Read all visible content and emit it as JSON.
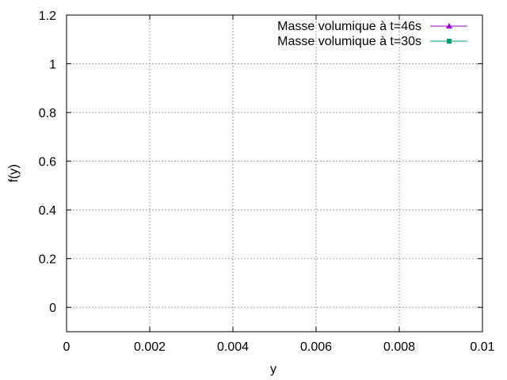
{
  "chart_data": {
    "type": "line",
    "xlabel": "y",
    "ylabel": "f(y)",
    "xlim": [
      0,
      0.01
    ],
    "ylim": [
      -0.1,
      1.2
    ],
    "xticks": [
      {
        "value": 0,
        "label": "0"
      },
      {
        "value": 0.002,
        "label": "0.002"
      },
      {
        "value": 0.004,
        "label": "0.004"
      },
      {
        "value": 0.006,
        "label": "0.006"
      },
      {
        "value": 0.008,
        "label": "0.008"
      },
      {
        "value": 0.01,
        "label": "0.01"
      }
    ],
    "yticks": [
      {
        "value": 0,
        "label": "0"
      },
      {
        "value": 0.2,
        "label": "0.2"
      },
      {
        "value": 0.4,
        "label": "0.4"
      },
      {
        "value": 0.6,
        "label": "0.6"
      },
      {
        "value": 0.8,
        "label": "0.8"
      },
      {
        "value": 1,
        "label": "1"
      },
      {
        "value": 1.2,
        "label": "1.2"
      }
    ],
    "grid": true,
    "legend_position": "top-right",
    "series": [
      {
        "name": "Masse volumique à t=46s",
        "color": "#9400d3",
        "marker": "triangle",
        "values": []
      },
      {
        "name": "Masse volumique à t=30s",
        "color": "#009e73",
        "marker": "square",
        "values": []
      }
    ]
  }
}
